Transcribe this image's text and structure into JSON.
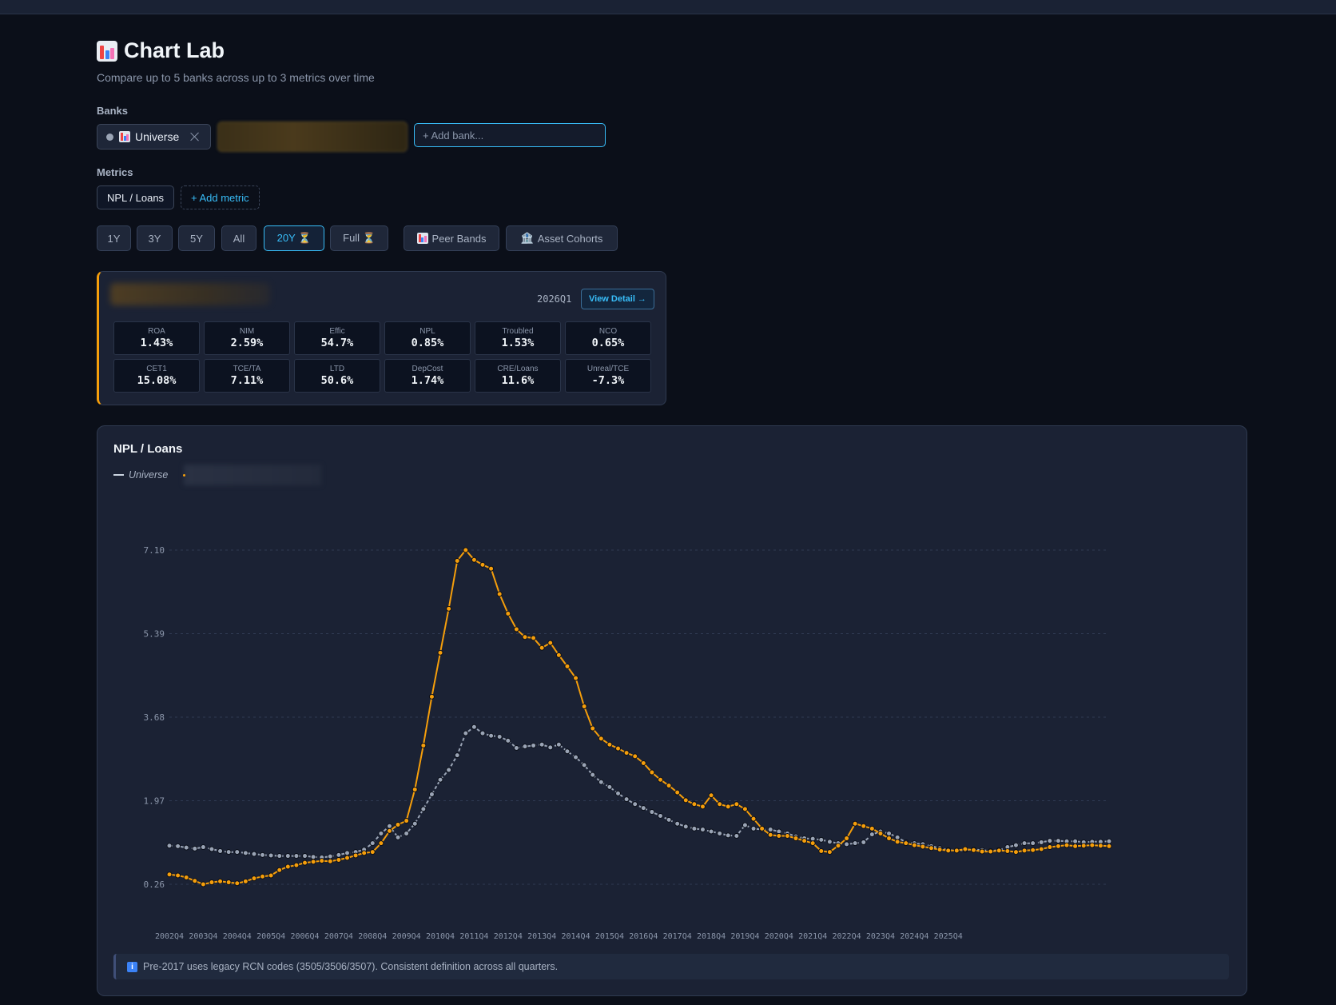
{
  "page": {
    "title": "Chart Lab",
    "subtitle": "Compare up to 5 banks across up to 3 metrics over time"
  },
  "banks": {
    "label": "Banks",
    "selected": [
      {
        "name": "Universe"
      }
    ],
    "add_placeholder": "+ Add bank..."
  },
  "metrics": {
    "label": "Metrics",
    "selected": [
      "NPL / Loans"
    ],
    "add_label": "+ Add metric"
  },
  "range_buttons": [
    {
      "label": "1Y",
      "active": false
    },
    {
      "label": "3Y",
      "active": false
    },
    {
      "label": "5Y",
      "active": false
    },
    {
      "label": "All",
      "active": false
    },
    {
      "label": "20Y ⏳",
      "active": true
    },
    {
      "label": "Full ⏳",
      "active": false
    }
  ],
  "tool_buttons": [
    {
      "label": "Peer Bands",
      "icon": "bar-chart-icon"
    },
    {
      "label": "Asset Cohorts",
      "icon": "bank-icon"
    }
  ],
  "summary_card": {
    "quarter": "2026Q1",
    "view_detail_label": "View Detail →",
    "stats": [
      {
        "label": "ROA",
        "value": "1.43%"
      },
      {
        "label": "NIM",
        "value": "2.59%"
      },
      {
        "label": "Effic",
        "value": "54.7%"
      },
      {
        "label": "NPL",
        "value": "0.85%"
      },
      {
        "label": "Troubled",
        "value": "1.53%"
      },
      {
        "label": "NCO",
        "value": "0.65%"
      },
      {
        "label": "CET1",
        "value": "15.08%"
      },
      {
        "label": "TCE/TA",
        "value": "7.11%"
      },
      {
        "label": "LTD",
        "value": "50.6%"
      },
      {
        "label": "DepCost",
        "value": "1.74%"
      },
      {
        "label": "CRE/Loans",
        "value": "11.6%"
      },
      {
        "label": "Unreal/TCE",
        "value": "-7.3%"
      }
    ]
  },
  "chart_data": {
    "type": "line",
    "title": "NPL / Loans",
    "legend": [
      "Universe"
    ],
    "xlabel": "",
    "ylabel": "",
    "x_tick_labels": [
      "2002Q4",
      "2003Q4",
      "2004Q4",
      "2005Q4",
      "2006Q4",
      "2007Q4",
      "2008Q4",
      "2009Q4",
      "2010Q4",
      "2011Q4",
      "2012Q4",
      "2013Q4",
      "2014Q4",
      "2015Q4",
      "2016Q4",
      "2017Q4",
      "2018Q4",
      "2019Q4",
      "2020Q4",
      "2021Q4",
      "2022Q4",
      "2023Q4",
      "2024Q4",
      "2025Q4"
    ],
    "y_tick_labels": [
      "0.26",
      "1.97",
      "3.68",
      "5.39",
      "7.10"
    ],
    "ylim": [
      0.26,
      7.1
    ],
    "grid": true,
    "x_start": "2002Q4",
    "series": [
      {
        "name": "Universe",
        "color": "#9aa4b5",
        "values": [
          1.05,
          1.04,
          1.01,
          0.99,
          1.02,
          0.98,
          0.94,
          0.92,
          0.92,
          0.9,
          0.88,
          0.86,
          0.85,
          0.84,
          0.84,
          0.84,
          0.84,
          0.82,
          0.81,
          0.83,
          0.86,
          0.9,
          0.92,
          0.97,
          1.1,
          1.3,
          1.45,
          1.22,
          1.3,
          1.5,
          1.8,
          2.1,
          2.4,
          2.6,
          2.9,
          3.35,
          3.48,
          3.35,
          3.3,
          3.28,
          3.2,
          3.05,
          3.08,
          3.1,
          3.12,
          3.06,
          3.12,
          2.98,
          2.86,
          2.7,
          2.5,
          2.35,
          2.25,
          2.12,
          2.0,
          1.9,
          1.82,
          1.74,
          1.66,
          1.58,
          1.5,
          1.44,
          1.4,
          1.38,
          1.34,
          1.3,
          1.26,
          1.25,
          1.47,
          1.4,
          1.38,
          1.38,
          1.34,
          1.3,
          1.24,
          1.2,
          1.19,
          1.17,
          1.13,
          1.1,
          1.08,
          1.1,
          1.12,
          1.28,
          1.34,
          1.3,
          1.22,
          1.12,
          1.1,
          1.08,
          1.04,
          1.0,
          0.96,
          0.95,
          0.96,
          0.97,
          0.96,
          0.94,
          0.96,
          1.02,
          1.06,
          1.1,
          1.1,
          1.12,
          1.15,
          1.15,
          1.14,
          1.14,
          1.12,
          1.13,
          1.13,
          1.14
        ]
      },
      {
        "name": "",
        "color": "#f59e0b",
        "values": [
          0.46,
          0.44,
          0.4,
          0.33,
          0.26,
          0.3,
          0.32,
          0.3,
          0.28,
          0.32,
          0.38,
          0.42,
          0.44,
          0.55,
          0.62,
          0.65,
          0.7,
          0.72,
          0.74,
          0.73,
          0.76,
          0.8,
          0.85,
          0.9,
          0.92,
          1.1,
          1.35,
          1.48,
          1.56,
          2.2,
          3.1,
          4.1,
          5.0,
          5.9,
          6.88,
          7.1,
          6.9,
          6.8,
          6.72,
          6.2,
          5.8,
          5.48,
          5.32,
          5.3,
          5.1,
          5.2,
          4.95,
          4.72,
          4.48,
          3.9,
          3.45,
          3.24,
          3.12,
          3.04,
          2.95,
          2.88,
          2.74,
          2.55,
          2.4,
          2.28,
          2.14,
          1.98,
          1.9,
          1.85,
          2.08,
          1.9,
          1.85,
          1.9,
          1.8,
          1.6,
          1.4,
          1.27,
          1.25,
          1.25,
          1.2,
          1.15,
          1.1,
          0.94,
          0.92,
          1.05,
          1.2,
          1.5,
          1.45,
          1.4,
          1.3,
          1.2,
          1.13,
          1.1,
          1.06,
          1.03,
          1.0,
          0.97,
          0.95,
          0.95,
          0.98,
          0.96,
          0.93,
          0.93,
          0.95,
          0.94,
          0.92,
          0.95,
          0.96,
          0.98,
          1.02,
          1.04,
          1.06,
          1.04,
          1.05,
          1.06,
          1.05,
          1.04
        ]
      }
    ]
  },
  "note": {
    "icon": "info-icon",
    "text": "Pre-2017 uses legacy RCN codes (3505/3506/3507). Consistent definition across all quarters."
  }
}
